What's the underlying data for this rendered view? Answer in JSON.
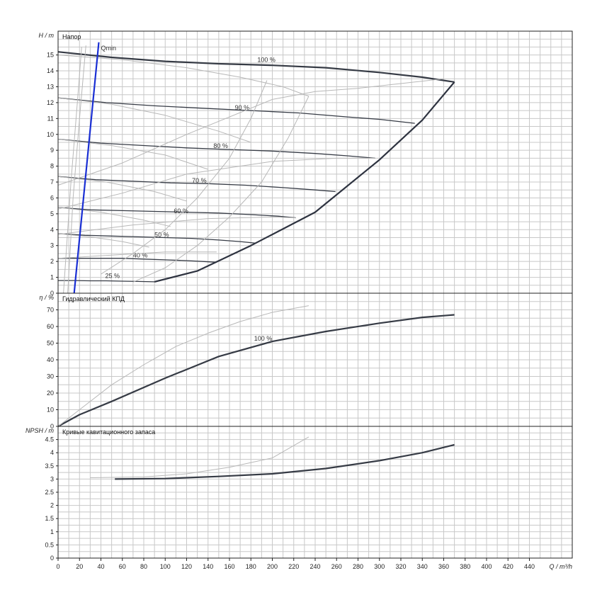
{
  "chart_data": [
    {
      "panel": "head",
      "type": "line",
      "title": "Напор",
      "ylabel": "H / m",
      "xlim": [
        0,
        480
      ],
      "ylim": [
        0,
        16.5
      ],
      "yticks": [
        "0",
        "1",
        "2",
        "3",
        "4",
        "5",
        "6",
        "7",
        "8",
        "9",
        "10",
        "11",
        "12",
        "13",
        "14",
        "15"
      ],
      "grid": true,
      "series": [
        {
          "name": "100 %",
          "style": "main",
          "points": [
            [
              0,
              15.2
            ],
            [
              50,
              14.85
            ],
            [
              100,
              14.6
            ],
            [
              150,
              14.45
            ],
            [
              200,
              14.35
            ],
            [
              250,
              14.2
            ],
            [
              300,
              13.9
            ],
            [
              340,
              13.6
            ],
            [
              370,
              13.3
            ]
          ]
        },
        {
          "name": "90 %",
          "style": "main",
          "points": [
            [
              0,
              12.3
            ],
            [
              45,
              12.0
            ],
            [
              90,
              11.8
            ],
            [
              135,
              11.65
            ],
            [
              180,
              11.5
            ],
            [
              225,
              11.35
            ],
            [
              270,
              11.1
            ],
            [
              300,
              10.95
            ],
            [
              333,
              10.7
            ]
          ]
        },
        {
          "name": "80 %",
          "style": "main",
          "points": [
            [
              0,
              9.7
            ],
            [
              40,
              9.45
            ],
            [
              80,
              9.3
            ],
            [
              120,
              9.15
            ],
            [
              160,
              9.05
            ],
            [
              200,
              8.95
            ],
            [
              240,
              8.8
            ],
            [
              270,
              8.65
            ],
            [
              296,
              8.5
            ]
          ]
        },
        {
          "name": "70 %",
          "style": "main",
          "points": [
            [
              0,
              7.35
            ],
            [
              35,
              7.15
            ],
            [
              70,
              7.05
            ],
            [
              105,
              6.95
            ],
            [
              140,
              6.9
            ],
            [
              175,
              6.8
            ],
            [
              210,
              6.65
            ],
            [
              240,
              6.5
            ],
            [
              259,
              6.4
            ]
          ]
        },
        {
          "name": "60 %",
          "style": "main",
          "points": [
            [
              0,
              5.4
            ],
            [
              30,
              5.25
            ],
            [
              60,
              5.2
            ],
            [
              90,
              5.15
            ],
            [
              120,
              5.1
            ],
            [
              150,
              5.05
            ],
            [
              180,
              4.95
            ],
            [
              205,
              4.85
            ],
            [
              222,
              4.75
            ]
          ]
        },
        {
          "name": "50 %",
          "style": "main",
          "points": [
            [
              0,
              3.75
            ],
            [
              25,
              3.65
            ],
            [
              50,
              3.6
            ],
            [
              75,
              3.55
            ],
            [
              100,
              3.5
            ],
            [
              125,
              3.45
            ],
            [
              150,
              3.35
            ],
            [
              170,
              3.25
            ],
            [
              185,
              3.15
            ]
          ]
        },
        {
          "name": "40 %",
          "style": "main",
          "points": [
            [
              0,
              2.2
            ],
            [
              20,
              2.2
            ],
            [
              40,
              2.2
            ],
            [
              60,
              2.2
            ],
            [
              80,
              2.15
            ],
            [
              100,
              2.1
            ],
            [
              120,
              2.05
            ],
            [
              135,
              2.0
            ],
            [
              148,
              1.95
            ]
          ]
        },
        {
          "name": "25 %",
          "style": "main",
          "points": [
            [
              0,
              0.8
            ],
            [
              15,
              0.8
            ],
            [
              30,
              0.78
            ],
            [
              45,
              0.78
            ],
            [
              60,
              0.76
            ],
            [
              75,
              0.74
            ],
            [
              90,
              0.72
            ]
          ]
        },
        {
          "name": "",
          "style": "envelope",
          "points": [
            [
              90,
              0.72
            ],
            [
              130,
              1.4
            ],
            [
              180,
              3.0
            ],
            [
              240,
              5.1
            ],
            [
              300,
              8.4
            ],
            [
              340,
              10.9
            ],
            [
              370,
              13.3
            ]
          ]
        },
        {
          "name": "",
          "style": "gray",
          "points": [
            [
              0,
              15.0
            ],
            [
              60,
              14.7
            ],
            [
              120,
              14.2
            ],
            [
              170,
              13.6
            ],
            [
              210,
              13.0
            ],
            [
              234,
              12.4
            ]
          ]
        },
        {
          "name": "",
          "style": "gray",
          "points": [
            [
              234,
              12.4
            ],
            [
              215,
              9.8
            ],
            [
              190,
              7.0
            ],
            [
              160,
              4.8
            ],
            [
              130,
              3.0
            ],
            [
              100,
              1.6
            ],
            [
              70,
              0.7
            ]
          ]
        },
        {
          "name": "",
          "style": "gray",
          "points": [
            [
              0,
              12.3
            ],
            [
              50,
              11.9
            ],
            [
              100,
              11.2
            ],
            [
              150,
              10.2
            ],
            [
              180,
              9.5
            ]
          ]
        },
        {
          "name": "",
          "style": "gray",
          "points": [
            [
              0,
              9.7
            ],
            [
              50,
              9.3
            ],
            [
              100,
              8.7
            ],
            [
              140,
              7.8
            ]
          ]
        },
        {
          "name": "",
          "style": "gray",
          "points": [
            [
              0,
              7.35
            ],
            [
              45,
              7.0
            ],
            [
              90,
              6.4
            ],
            [
              120,
              5.8
            ]
          ]
        },
        {
          "name": "",
          "style": "gray",
          "points": [
            [
              0,
              5.4
            ],
            [
              40,
              5.1
            ],
            [
              80,
              4.6
            ],
            [
              105,
              4.2
            ]
          ]
        },
        {
          "name": "",
          "style": "gray",
          "points": [
            [
              0,
              3.75
            ],
            [
              30,
              3.55
            ],
            [
              60,
              3.25
            ],
            [
              85,
              2.9
            ]
          ]
        },
        {
          "name": "",
          "style": "gray",
          "points": [
            [
              0,
              6.8
            ],
            [
              60,
              8.2
            ],
            [
              120,
              10.0
            ],
            [
              200,
              12.2
            ],
            [
              240,
              12.7
            ],
            [
              280,
              12.9
            ],
            [
              360,
              13.5
            ]
          ]
        },
        {
          "name": "",
          "style": "gray",
          "points": [
            [
              0,
              5.3
            ],
            [
              60,
              6.3
            ],
            [
              120,
              7.5
            ],
            [
              200,
              8.3
            ],
            [
              260,
              8.5
            ],
            [
              296,
              8.5
            ]
          ]
        },
        {
          "name": "",
          "style": "gray",
          "points": [
            [
              0,
              3.7
            ],
            [
              70,
              4.3
            ],
            [
              140,
              4.7
            ],
            [
              200,
              4.8
            ],
            [
              222,
              4.75
            ]
          ]
        },
        {
          "name": "",
          "style": "gray",
          "points": [
            [
              0,
              2.2
            ],
            [
              50,
              2.4
            ],
            [
              100,
              2.6
            ],
            [
              148,
              2.6
            ]
          ]
        },
        {
          "name": "",
          "style": "gray",
          "points": [
            [
              5,
              0
            ],
            [
              12,
              7
            ],
            [
              18,
              12
            ],
            [
              22,
              15.5
            ]
          ]
        },
        {
          "name": "",
          "style": "gray",
          "points": [
            [
              9,
              0
            ],
            [
              14,
              6
            ],
            [
              20,
              11
            ],
            [
              26,
              15.6
            ]
          ]
        },
        {
          "name": "",
          "style": "gray",
          "points": [
            [
              195,
              13.4
            ],
            [
              180,
              11.0
            ],
            [
              160,
              8.5
            ],
            [
              130,
              6.0
            ],
            [
              100,
              4.0
            ],
            [
              70,
              2.5
            ],
            [
              40,
              1.2
            ]
          ]
        },
        {
          "name": "Qmin",
          "style": "qmin",
          "points": [
            [
              15,
              0
            ],
            [
              38,
              15.8
            ]
          ]
        }
      ]
    },
    {
      "panel": "efficiency",
      "type": "line",
      "title": "Гидравлический КПД",
      "ylabel": "η / %",
      "xlim": [
        0,
        480
      ],
      "ylim": [
        0,
        80
      ],
      "yticks": [
        "0",
        "10",
        "20",
        "30",
        "40",
        "50",
        "60",
        "70"
      ],
      "grid": true,
      "series": [
        {
          "name": "100 %",
          "style": "main",
          "points": [
            [
              0,
              0
            ],
            [
              20,
              7
            ],
            [
              50,
              15
            ],
            [
              100,
              29
            ],
            [
              150,
              42
            ],
            [
              200,
              51
            ],
            [
              250,
              57
            ],
            [
              300,
              62
            ],
            [
              340,
              65.5
            ],
            [
              370,
              67
            ]
          ]
        },
        {
          "name": "",
          "style": "gray",
          "points": [
            [
              0,
              0
            ],
            [
              20,
              10
            ],
            [
              50,
              25
            ],
            [
              80,
              37
            ],
            [
              110,
              48
            ],
            [
              140,
              56
            ],
            [
              170,
              63
            ],
            [
              200,
              68.5
            ],
            [
              234,
              72.5
            ]
          ]
        }
      ]
    },
    {
      "panel": "npsh",
      "type": "line",
      "title": "Кривые кавитационного запаса",
      "ylabel": "NPSH / m",
      "xlabel": "Q / m³/h",
      "xlim": [
        0,
        480
      ],
      "ylim": [
        0,
        5
      ],
      "yticks": [
        "0",
        "0.5",
        "1",
        "1.5",
        "2",
        "2.5",
        "3",
        "3.5",
        "4",
        "4.5"
      ],
      "xticks": [
        "0",
        "20",
        "40",
        "60",
        "80",
        "100",
        "120",
        "140",
        "160",
        "180",
        "200",
        "220",
        "240",
        "260",
        "280",
        "300",
        "320",
        "340",
        "360",
        "380",
        "400",
        "420",
        "440"
      ],
      "grid": true,
      "series": [
        {
          "name": "",
          "style": "main",
          "points": [
            [
              53,
              3.0
            ],
            [
              100,
              3.02
            ],
            [
              150,
              3.1
            ],
            [
              200,
              3.2
            ],
            [
              250,
              3.4
            ],
            [
              300,
              3.7
            ],
            [
              340,
              4.0
            ],
            [
              370,
              4.3
            ]
          ]
        },
        {
          "name": "",
          "style": "gray",
          "points": [
            [
              30,
              3.05
            ],
            [
              80,
              3.08
            ],
            [
              120,
              3.2
            ],
            [
              160,
              3.45
            ],
            [
              200,
              3.8
            ],
            [
              234,
              4.6
            ]
          ]
        }
      ]
    }
  ]
}
